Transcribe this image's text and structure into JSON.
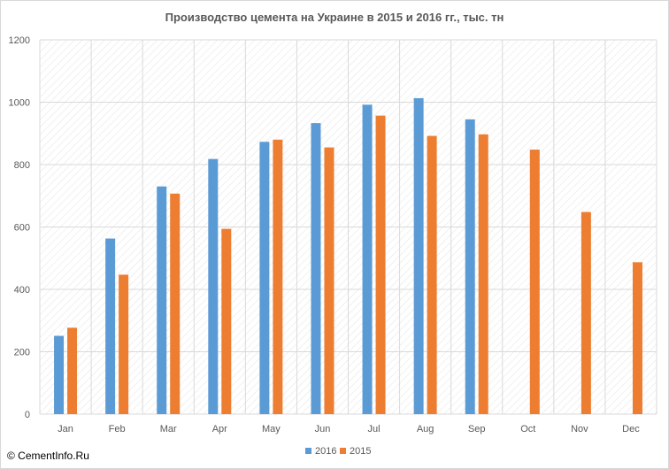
{
  "chart_data": {
    "type": "bar",
    "title": "Производство цемента на Украине в 2015 и 2016 гг., тыс. тн",
    "xlabel": "",
    "ylabel": "",
    "ylim": [
      0,
      1200
    ],
    "y_ticks": [
      "0",
      "200",
      "400",
      "600",
      "800",
      "1000",
      "1200"
    ],
    "categories": [
      "Jan",
      "Feb",
      "Mar",
      "Apr",
      "May",
      "Jun",
      "Jul",
      "Aug",
      "Sep",
      "Oct",
      "Nov",
      "Dec"
    ],
    "series": [
      {
        "name": "2016",
        "color": "#5b9bd5",
        "values": [
          251,
          563,
          730,
          818,
          873,
          933,
          992,
          1013,
          945,
          null,
          null,
          null
        ]
      },
      {
        "name": "2015",
        "color": "#ed7d31",
        "values": [
          277,
          447,
          707,
          594,
          880,
          855,
          957,
          892,
          897,
          848,
          648,
          487
        ]
      }
    ],
    "grid": true,
    "legend_position": "bottom-center"
  },
  "source_text": "© CementInfo.Ru"
}
